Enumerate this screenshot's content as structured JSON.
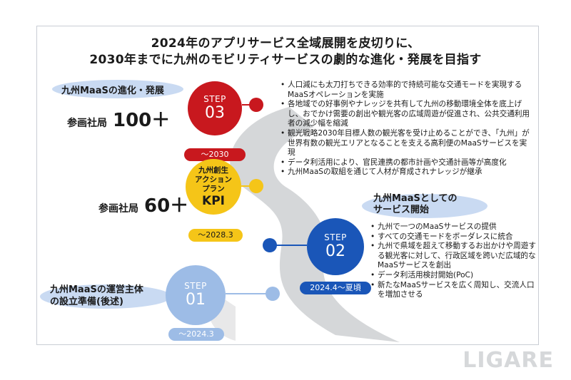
{
  "title": {
    "line1": "2024年のアプリサービス全域展開を皮切りに、",
    "line2": "2030年までに九州のモビリティサービスの劇的な進化・発展を目指す"
  },
  "labels": {
    "top": "九州MaaSの進化・発展",
    "middle_line1": "九州MaaSとしての",
    "middle_line2": "サービス開始",
    "bottom_line1": "九州MaaSの運営主体",
    "bottom_line2": "の設立準備(後述)"
  },
  "participants": {
    "high_label": "参画社局",
    "high_value": "100＋",
    "mid_label": "参画社局",
    "mid_value": "60＋"
  },
  "steps": {
    "step03": {
      "label": "STEP",
      "number": "03",
      "period": "～2030"
    },
    "kpi": {
      "line1": "九州創生",
      "line2": "アクション",
      "line3": "プラン",
      "line4": "KPI",
      "period": "～2028.3"
    },
    "step02": {
      "label": "STEP",
      "number": "02",
      "period": "2024.4～夏頃"
    },
    "step01": {
      "label": "STEP",
      "number": "01",
      "period": "～2024.3"
    }
  },
  "bullets_step03": [
    "人口減にも太刀打ちできる効率的で持続可能な交通モードを実現するMaaSオペレーションを実施",
    "各地域での好事例やナレッジを共有して九州の移動環境全体を底上げし、おでかけ需要の創出や観光客の広域周遊が促進され、公共交通利用者の減少幅を縮減",
    "観光戦略2030年目標人数の観光客を受け止めることができ、「九州」が世界有数の観光エリアとなることを支える高利便のMaaSサービスを実現",
    "データ利活用により、官民連携の都市計画や交通計画等が高度化",
    "九州MaaSの取組を通じて人材が育成されナレッジが継承"
  ],
  "bullets_step02": [
    "九州で一つのMaaSサービスの提供",
    "すべての交通モードをボーダレスに統合",
    "九州で県域を超えて移動するお出かけや周遊する観光客に対して、行政区域を跨いだ広域的なMaaSサービスを創出",
    "データ利活用検討開始(PoC)",
    "新たなMaaSサービスを広く周知し、交流人口を増加させる"
  ],
  "logo": "LIGARE",
  "colors": {
    "step03": "#c8181e",
    "kpi": "#f5c518",
    "step02": "#1a56b8",
    "step01": "#9dbce6",
    "highlight": "#c9daf2"
  }
}
